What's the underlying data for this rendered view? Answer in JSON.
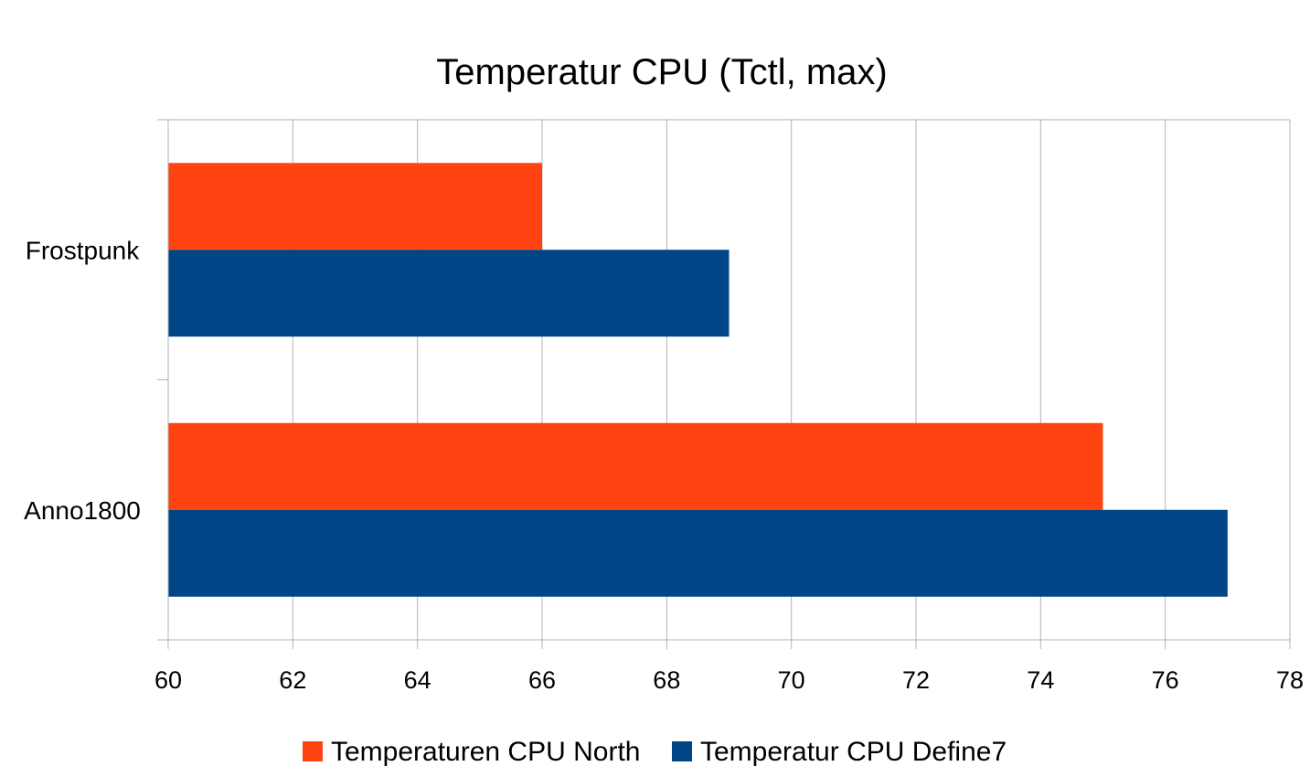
{
  "chart_data": {
    "type": "bar",
    "orientation": "horizontal",
    "title": "Temperatur CPU (Tctl, max)",
    "categories": [
      "Frostpunk",
      "Anno1800"
    ],
    "series": [
      {
        "name": "Temperaturen CPU North",
        "color": "#ff4411",
        "values": [
          66,
          75
        ]
      },
      {
        "name": "Temperatur CPU Define7",
        "color": "#004586",
        "values": [
          69,
          77
        ]
      }
    ],
    "xlim": [
      60,
      78
    ],
    "xticks": [
      60,
      62,
      64,
      66,
      68,
      70,
      72,
      74,
      76,
      78
    ],
    "grid": true,
    "legend_position": "bottom"
  }
}
